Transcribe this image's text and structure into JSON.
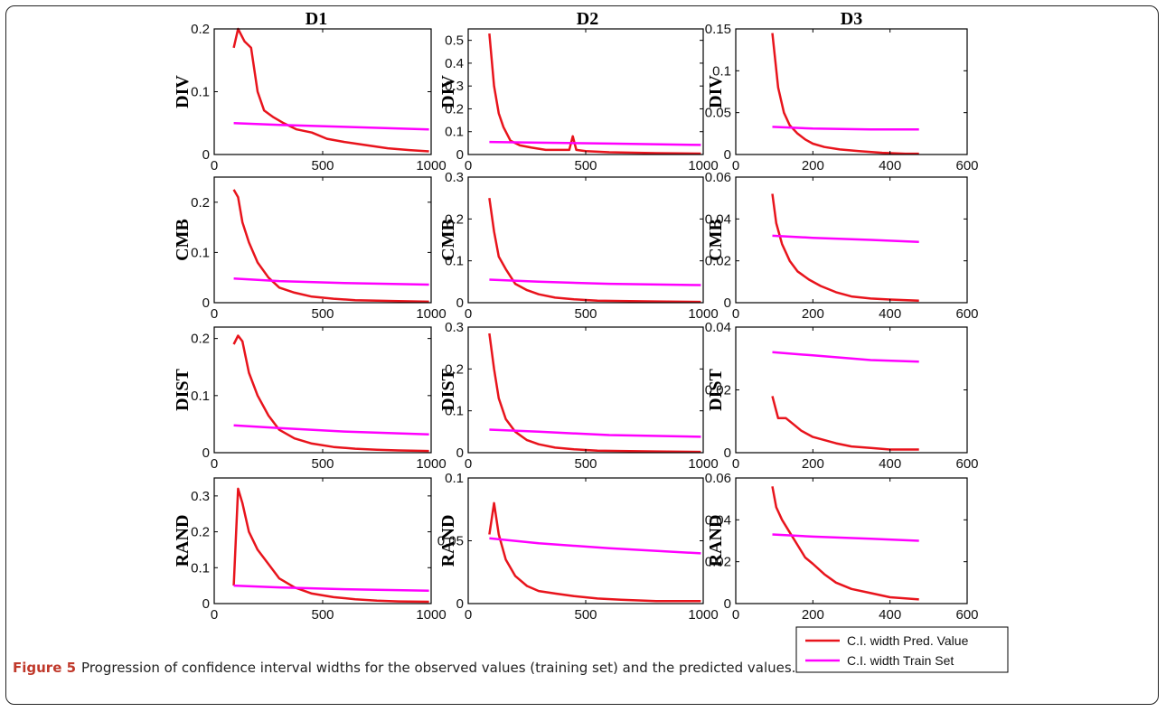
{
  "caption": {
    "label": "Figure 5",
    "text": "Progression of confidence interval widths for the observed values (training set) and the predicted values."
  },
  "colors": {
    "pred": "#e8141c",
    "train": "#ff00ff",
    "axis": "#000000"
  },
  "legend": {
    "placement": "bottom-right",
    "entries": [
      "C.I. width Pred. Value",
      "C.I. width Train Set"
    ]
  },
  "columns": [
    "D1",
    "D2",
    "D3"
  ],
  "rows": [
    "DIV",
    "CMB",
    "DIST",
    "RAND"
  ],
  "chart_data": [
    {
      "type": "line",
      "col": "D1",
      "row": "DIV",
      "xlim": [
        0,
        1000
      ],
      "ylim": [
        0,
        0.2
      ],
      "xticks": [
        0,
        500,
        1000
      ],
      "yticks": [
        0,
        0.1,
        0.2
      ],
      "xtick_labels": [
        "0",
        "500",
        "1000"
      ],
      "ytick_labels": [
        "0",
        "0.1",
        "0.2"
      ],
      "series": [
        {
          "name": "C.I. width Pred. Value",
          "x": [
            90,
            110,
            140,
            170,
            200,
            230,
            270,
            320,
            380,
            450,
            520,
            600,
            700,
            800,
            900,
            990
          ],
          "y": [
            0.17,
            0.2,
            0.18,
            0.17,
            0.1,
            0.07,
            0.06,
            0.05,
            0.04,
            0.035,
            0.025,
            0.02,
            0.015,
            0.01,
            0.007,
            0.005
          ]
        },
        {
          "name": "C.I. width Train Set",
          "x": [
            90,
            300,
            600,
            990
          ],
          "y": [
            0.05,
            0.047,
            0.044,
            0.04
          ]
        }
      ]
    },
    {
      "type": "line",
      "col": "D2",
      "row": "DIV",
      "xlim": [
        0,
        1000
      ],
      "ylim": [
        0,
        0.55
      ],
      "xticks": [
        0,
        500,
        1000
      ],
      "yticks": [
        0,
        0.1,
        0.2,
        0.3,
        0.4,
        0.5
      ],
      "xtick_labels": [
        "0",
        "500",
        "1000"
      ],
      "ytick_labels": [
        "0",
        "0.1",
        "0.2",
        "0.3",
        "0.4",
        "0.5"
      ],
      "series": [
        {
          "name": "C.I. width Pred. Value",
          "x": [
            90,
            110,
            130,
            150,
            180,
            220,
            270,
            330,
            400,
            430,
            445,
            460,
            500,
            600,
            700,
            800,
            900,
            990
          ],
          "y": [
            0.53,
            0.3,
            0.18,
            0.12,
            0.06,
            0.04,
            0.03,
            0.02,
            0.02,
            0.02,
            0.08,
            0.02,
            0.015,
            0.01,
            0.008,
            0.006,
            0.005,
            0.004
          ]
        },
        {
          "name": "C.I. width Train Set",
          "x": [
            90,
            300,
            600,
            990
          ],
          "y": [
            0.055,
            0.052,
            0.048,
            0.042
          ]
        }
      ]
    },
    {
      "type": "line",
      "col": "D3",
      "row": "DIV",
      "xlim": [
        0,
        600
      ],
      "ylim": [
        0,
        0.15
      ],
      "xticks": [
        0,
        200,
        400,
        600
      ],
      "yticks": [
        0,
        0.05,
        0.1,
        0.15
      ],
      "xtick_labels": [
        "0",
        "200",
        "400",
        "600"
      ],
      "ytick_labels": [
        "0",
        "0.05",
        "0.1",
        "0.15"
      ],
      "series": [
        {
          "name": "C.I. width Pred. Value",
          "x": [
            95,
            110,
            125,
            140,
            160,
            180,
            200,
            230,
            270,
            320,
            380,
            440,
            475
          ],
          "y": [
            0.145,
            0.08,
            0.05,
            0.035,
            0.025,
            0.018,
            0.013,
            0.009,
            0.006,
            0.004,
            0.002,
            0.001,
            0.001
          ]
        },
        {
          "name": "C.I. width Train Set",
          "x": [
            95,
            200,
            350,
            475
          ],
          "y": [
            0.033,
            0.031,
            0.03,
            0.03
          ]
        }
      ]
    },
    {
      "type": "line",
      "col": "D1",
      "row": "CMB",
      "xlim": [
        0,
        1000
      ],
      "ylim": [
        0,
        0.25
      ],
      "xticks": [
        0,
        500,
        1000
      ],
      "yticks": [
        0,
        0.1,
        0.2
      ],
      "xtick_labels": [
        "0",
        "500",
        "1000"
      ],
      "ytick_labels": [
        "0",
        "0.1",
        "0.2"
      ],
      "series": [
        {
          "name": "C.I. width Pred. Value",
          "x": [
            90,
            110,
            130,
            160,
            200,
            250,
            300,
            370,
            450,
            550,
            650,
            750,
            850,
            990
          ],
          "y": [
            0.225,
            0.21,
            0.16,
            0.12,
            0.08,
            0.05,
            0.03,
            0.02,
            0.012,
            0.008,
            0.005,
            0.004,
            0.003,
            0.002
          ]
        },
        {
          "name": "C.I. width Train Set",
          "x": [
            90,
            300,
            600,
            990
          ],
          "y": [
            0.048,
            0.043,
            0.039,
            0.036
          ]
        }
      ]
    },
    {
      "type": "line",
      "col": "D2",
      "row": "CMB",
      "xlim": [
        0,
        1000
      ],
      "ylim": [
        0,
        0.3
      ],
      "xticks": [
        0,
        500,
        1000
      ],
      "yticks": [
        0,
        0.1,
        0.2,
        0.3
      ],
      "xtick_labels": [
        "0",
        "500",
        "1000"
      ],
      "ytick_labels": [
        "0",
        "0.1",
        "0.2",
        "0.3"
      ],
      "series": [
        {
          "name": "C.I. width Pred. Value",
          "x": [
            90,
            110,
            130,
            160,
            200,
            250,
            300,
            370,
            450,
            550,
            650,
            800,
            990
          ],
          "y": [
            0.25,
            0.17,
            0.11,
            0.08,
            0.045,
            0.03,
            0.02,
            0.012,
            0.008,
            0.005,
            0.004,
            0.003,
            0.002
          ]
        },
        {
          "name": "C.I. width Train Set",
          "x": [
            90,
            300,
            600,
            990
          ],
          "y": [
            0.055,
            0.05,
            0.045,
            0.042
          ]
        }
      ]
    },
    {
      "type": "line",
      "col": "D3",
      "row": "CMB",
      "xlim": [
        0,
        600
      ],
      "ylim": [
        0,
        0.06
      ],
      "xticks": [
        0,
        200,
        400,
        600
      ],
      "yticks": [
        0,
        0.02,
        0.04,
        0.06
      ],
      "xtick_labels": [
        "0",
        "200",
        "400",
        "600"
      ],
      "ytick_labels": [
        "0",
        "0.02",
        "0.04",
        "0.06"
      ],
      "series": [
        {
          "name": "C.I. width Pred. Value",
          "x": [
            95,
            105,
            120,
            140,
            160,
            190,
            220,
            260,
            300,
            350,
            400,
            475
          ],
          "y": [
            0.052,
            0.038,
            0.028,
            0.02,
            0.015,
            0.011,
            0.008,
            0.005,
            0.003,
            0.002,
            0.0015,
            0.001
          ]
        },
        {
          "name": "C.I. width Train Set",
          "x": [
            95,
            200,
            350,
            475
          ],
          "y": [
            0.032,
            0.031,
            0.03,
            0.029
          ]
        }
      ]
    },
    {
      "type": "line",
      "col": "D1",
      "row": "DIST",
      "xlim": [
        0,
        1000
      ],
      "ylim": [
        0,
        0.22
      ],
      "xticks": [
        0,
        500,
        1000
      ],
      "yticks": [
        0,
        0.1,
        0.2
      ],
      "xtick_labels": [
        "0",
        "500",
        "1000"
      ],
      "ytick_labels": [
        "0",
        "0.1",
        "0.2"
      ],
      "series": [
        {
          "name": "C.I. width Pred. Value",
          "x": [
            90,
            110,
            130,
            160,
            200,
            250,
            300,
            370,
            450,
            550,
            650,
            750,
            850,
            990
          ],
          "y": [
            0.19,
            0.205,
            0.195,
            0.14,
            0.1,
            0.065,
            0.04,
            0.025,
            0.016,
            0.01,
            0.007,
            0.005,
            0.004,
            0.003
          ]
        },
        {
          "name": "C.I. width Train Set",
          "x": [
            90,
            300,
            600,
            990
          ],
          "y": [
            0.048,
            0.043,
            0.037,
            0.032
          ]
        }
      ]
    },
    {
      "type": "line",
      "col": "D2",
      "row": "DIST",
      "xlim": [
        0,
        1000
      ],
      "ylim": [
        0,
        0.3
      ],
      "xticks": [
        0,
        500,
        1000
      ],
      "yticks": [
        0,
        0.1,
        0.2,
        0.3
      ],
      "xtick_labels": [
        "0",
        "500",
        "1000"
      ],
      "ytick_labels": [
        "0",
        "0.1",
        "0.2",
        "0.3"
      ],
      "series": [
        {
          "name": "C.I. width Pred. Value",
          "x": [
            90,
            110,
            130,
            160,
            200,
            250,
            300,
            370,
            450,
            550,
            650,
            800,
            990
          ],
          "y": [
            0.285,
            0.2,
            0.13,
            0.08,
            0.05,
            0.03,
            0.02,
            0.012,
            0.008,
            0.005,
            0.004,
            0.003,
            0.002
          ]
        },
        {
          "name": "C.I. width Train Set",
          "x": [
            90,
            300,
            600,
            990
          ],
          "y": [
            0.055,
            0.05,
            0.042,
            0.038
          ]
        }
      ]
    },
    {
      "type": "line",
      "col": "D3",
      "row": "DIST",
      "xlim": [
        0,
        600
      ],
      "ylim": [
        0,
        0.04
      ],
      "xticks": [
        0,
        200,
        400,
        600
      ],
      "yticks": [
        0,
        0.02,
        0.04
      ],
      "xtick_labels": [
        "0",
        "200",
        "400",
        "600"
      ],
      "ytick_labels": [
        "0",
        "0.02",
        "0.04"
      ],
      "series": [
        {
          "name": "C.I. width Pred. Value",
          "x": [
            95,
            110,
            130,
            150,
            170,
            200,
            230,
            260,
            300,
            350,
            400,
            475
          ],
          "y": [
            0.018,
            0.011,
            0.011,
            0.009,
            0.007,
            0.005,
            0.004,
            0.003,
            0.002,
            0.0015,
            0.001,
            0.001
          ]
        },
        {
          "name": "C.I. width Train Set",
          "x": [
            95,
            200,
            350,
            475
          ],
          "y": [
            0.032,
            0.031,
            0.0295,
            0.029
          ]
        }
      ]
    },
    {
      "type": "line",
      "col": "D1",
      "row": "RAND",
      "xlim": [
        0,
        1000
      ],
      "ylim": [
        0,
        0.35
      ],
      "xticks": [
        0,
        500,
        1000
      ],
      "yticks": [
        0,
        0.1,
        0.2,
        0.3
      ],
      "xtick_labels": [
        "0",
        "500",
        "1000"
      ],
      "ytick_labels": [
        "0",
        "0.1",
        "0.2",
        "0.3"
      ],
      "series": [
        {
          "name": "C.I. width Pred. Value",
          "x": [
            90,
            90,
            110,
            130,
            160,
            200,
            250,
            300,
            370,
            450,
            550,
            650,
            750,
            850,
            990
          ],
          "y": [
            0.05,
            0.05,
            0.32,
            0.28,
            0.2,
            0.15,
            0.11,
            0.07,
            0.045,
            0.028,
            0.018,
            0.012,
            0.008,
            0.006,
            0.005
          ]
        },
        {
          "name": "C.I. width Train Set",
          "x": [
            90,
            300,
            600,
            990
          ],
          "y": [
            0.05,
            0.045,
            0.04,
            0.036
          ]
        }
      ]
    },
    {
      "type": "line",
      "col": "D2",
      "row": "RAND",
      "xlim": [
        0,
        1000
      ],
      "ylim": [
        0,
        0.1
      ],
      "xticks": [
        0,
        500,
        1000
      ],
      "yticks": [
        0,
        0.05,
        0.1
      ],
      "xtick_labels": [
        "0",
        "500",
        "1000"
      ],
      "ytick_labels": [
        "0",
        "0.05",
        "0.1"
      ],
      "series": [
        {
          "name": "C.I. width Pred. Value",
          "x": [
            90,
            110,
            130,
            160,
            200,
            250,
            300,
            370,
            450,
            550,
            650,
            800,
            990
          ],
          "y": [
            0.055,
            0.08,
            0.055,
            0.035,
            0.022,
            0.014,
            0.01,
            0.008,
            0.006,
            0.004,
            0.003,
            0.002,
            0.002
          ]
        },
        {
          "name": "C.I. width Train Set",
          "x": [
            90,
            300,
            600,
            990
          ],
          "y": [
            0.052,
            0.048,
            0.044,
            0.04
          ]
        }
      ]
    },
    {
      "type": "line",
      "col": "D3",
      "row": "RAND",
      "xlim": [
        0,
        600
      ],
      "ylim": [
        0,
        0.06
      ],
      "xticks": [
        0,
        200,
        400,
        600
      ],
      "yticks": [
        0,
        0.02,
        0.04,
        0.06
      ],
      "xtick_labels": [
        "0",
        "200",
        "400",
        "600"
      ],
      "ytick_labels": [
        "0",
        "0.02",
        "0.04",
        "0.06"
      ],
      "series": [
        {
          "name": "C.I. width Pred. Value",
          "x": [
            95,
            105,
            120,
            140,
            160,
            180,
            200,
            230,
            260,
            300,
            350,
            400,
            475
          ],
          "y": [
            0.056,
            0.046,
            0.04,
            0.034,
            0.028,
            0.022,
            0.019,
            0.014,
            0.01,
            0.007,
            0.005,
            0.003,
            0.002
          ]
        },
        {
          "name": "C.I. width Train Set",
          "x": [
            95,
            200,
            350,
            475
          ],
          "y": [
            0.033,
            0.032,
            0.031,
            0.03
          ]
        }
      ]
    }
  ]
}
